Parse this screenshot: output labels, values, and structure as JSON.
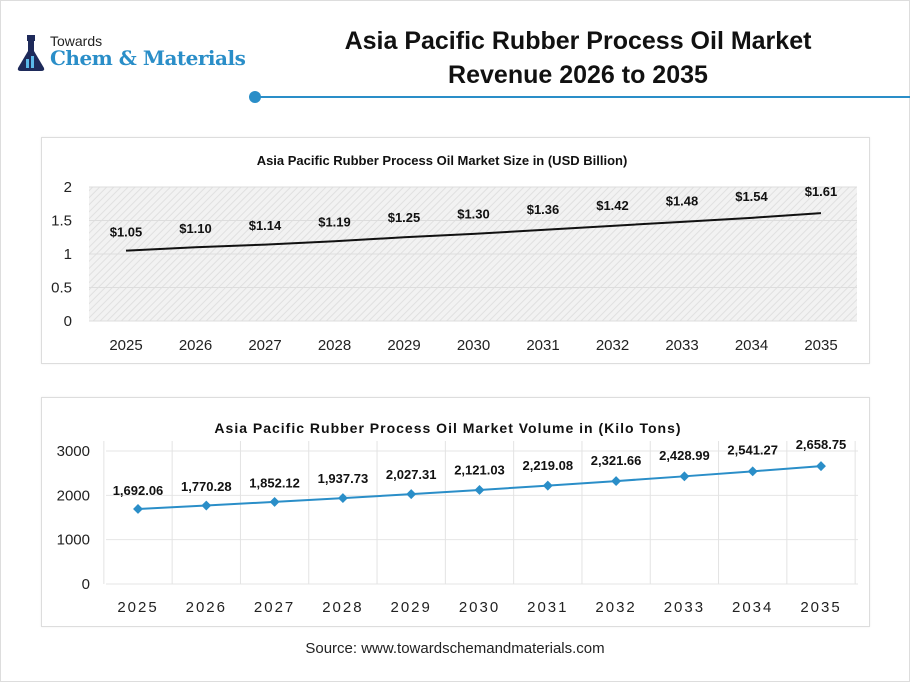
{
  "logo": {
    "line1": "Towards",
    "line2": "Chem & Materials"
  },
  "header": {
    "title_line1": "Asia Pacific Rubber Process Oil Market",
    "title_line2": "Revenue 2026 to 2035",
    "accent": "#2a8ec8"
  },
  "chart_data": [
    {
      "type": "line",
      "title": "Asia Pacific Rubber Process Oil Market Size in (USD Billion)",
      "categories": [
        "2025",
        "2026",
        "2027",
        "2028",
        "2029",
        "2030",
        "2031",
        "2032",
        "2033",
        "2034",
        "2035"
      ],
      "values": [
        1.05,
        1.1,
        1.14,
        1.19,
        1.25,
        1.3,
        1.36,
        1.42,
        1.48,
        1.54,
        1.61
      ],
      "labels": [
        "$1.05",
        "$1.10",
        "$1.14",
        "$1.19",
        "$1.25",
        "$1.30",
        "$1.36",
        "$1.42",
        "$1.48",
        "$1.54",
        "$1.61"
      ],
      "yticks": [
        "0",
        "0.5",
        "1",
        "1.5",
        "2"
      ],
      "ylim": [
        0,
        2
      ],
      "line_color": "#111111",
      "grid": true
    },
    {
      "type": "line",
      "title": "Asia Pacific Rubber Process Oil Market Volume in (Kilo Tons)",
      "categories": [
        "2025",
        "2026",
        "2027",
        "2028",
        "2029",
        "2030",
        "2031",
        "2032",
        "2033",
        "2034",
        "2035"
      ],
      "values": [
        1692.06,
        1770.28,
        1852.12,
        1937.73,
        2027.31,
        2121.03,
        2219.08,
        2321.66,
        2428.99,
        2541.27,
        2658.75
      ],
      "labels": [
        "1,692.06",
        "1,770.28",
        "1,852.12",
        "1,937.73",
        "2,027.31",
        "2,121.03",
        "2,219.08",
        "2,321.66",
        "2,428.99",
        "2,541.27",
        "2,658.75"
      ],
      "yticks": [
        "0",
        "1000",
        "2000",
        "3000"
      ],
      "ylim": [
        0,
        3000
      ],
      "line_color": "#2a8ec8",
      "grid": true
    }
  ],
  "source": "Source: www.towardschemandmaterials.com"
}
